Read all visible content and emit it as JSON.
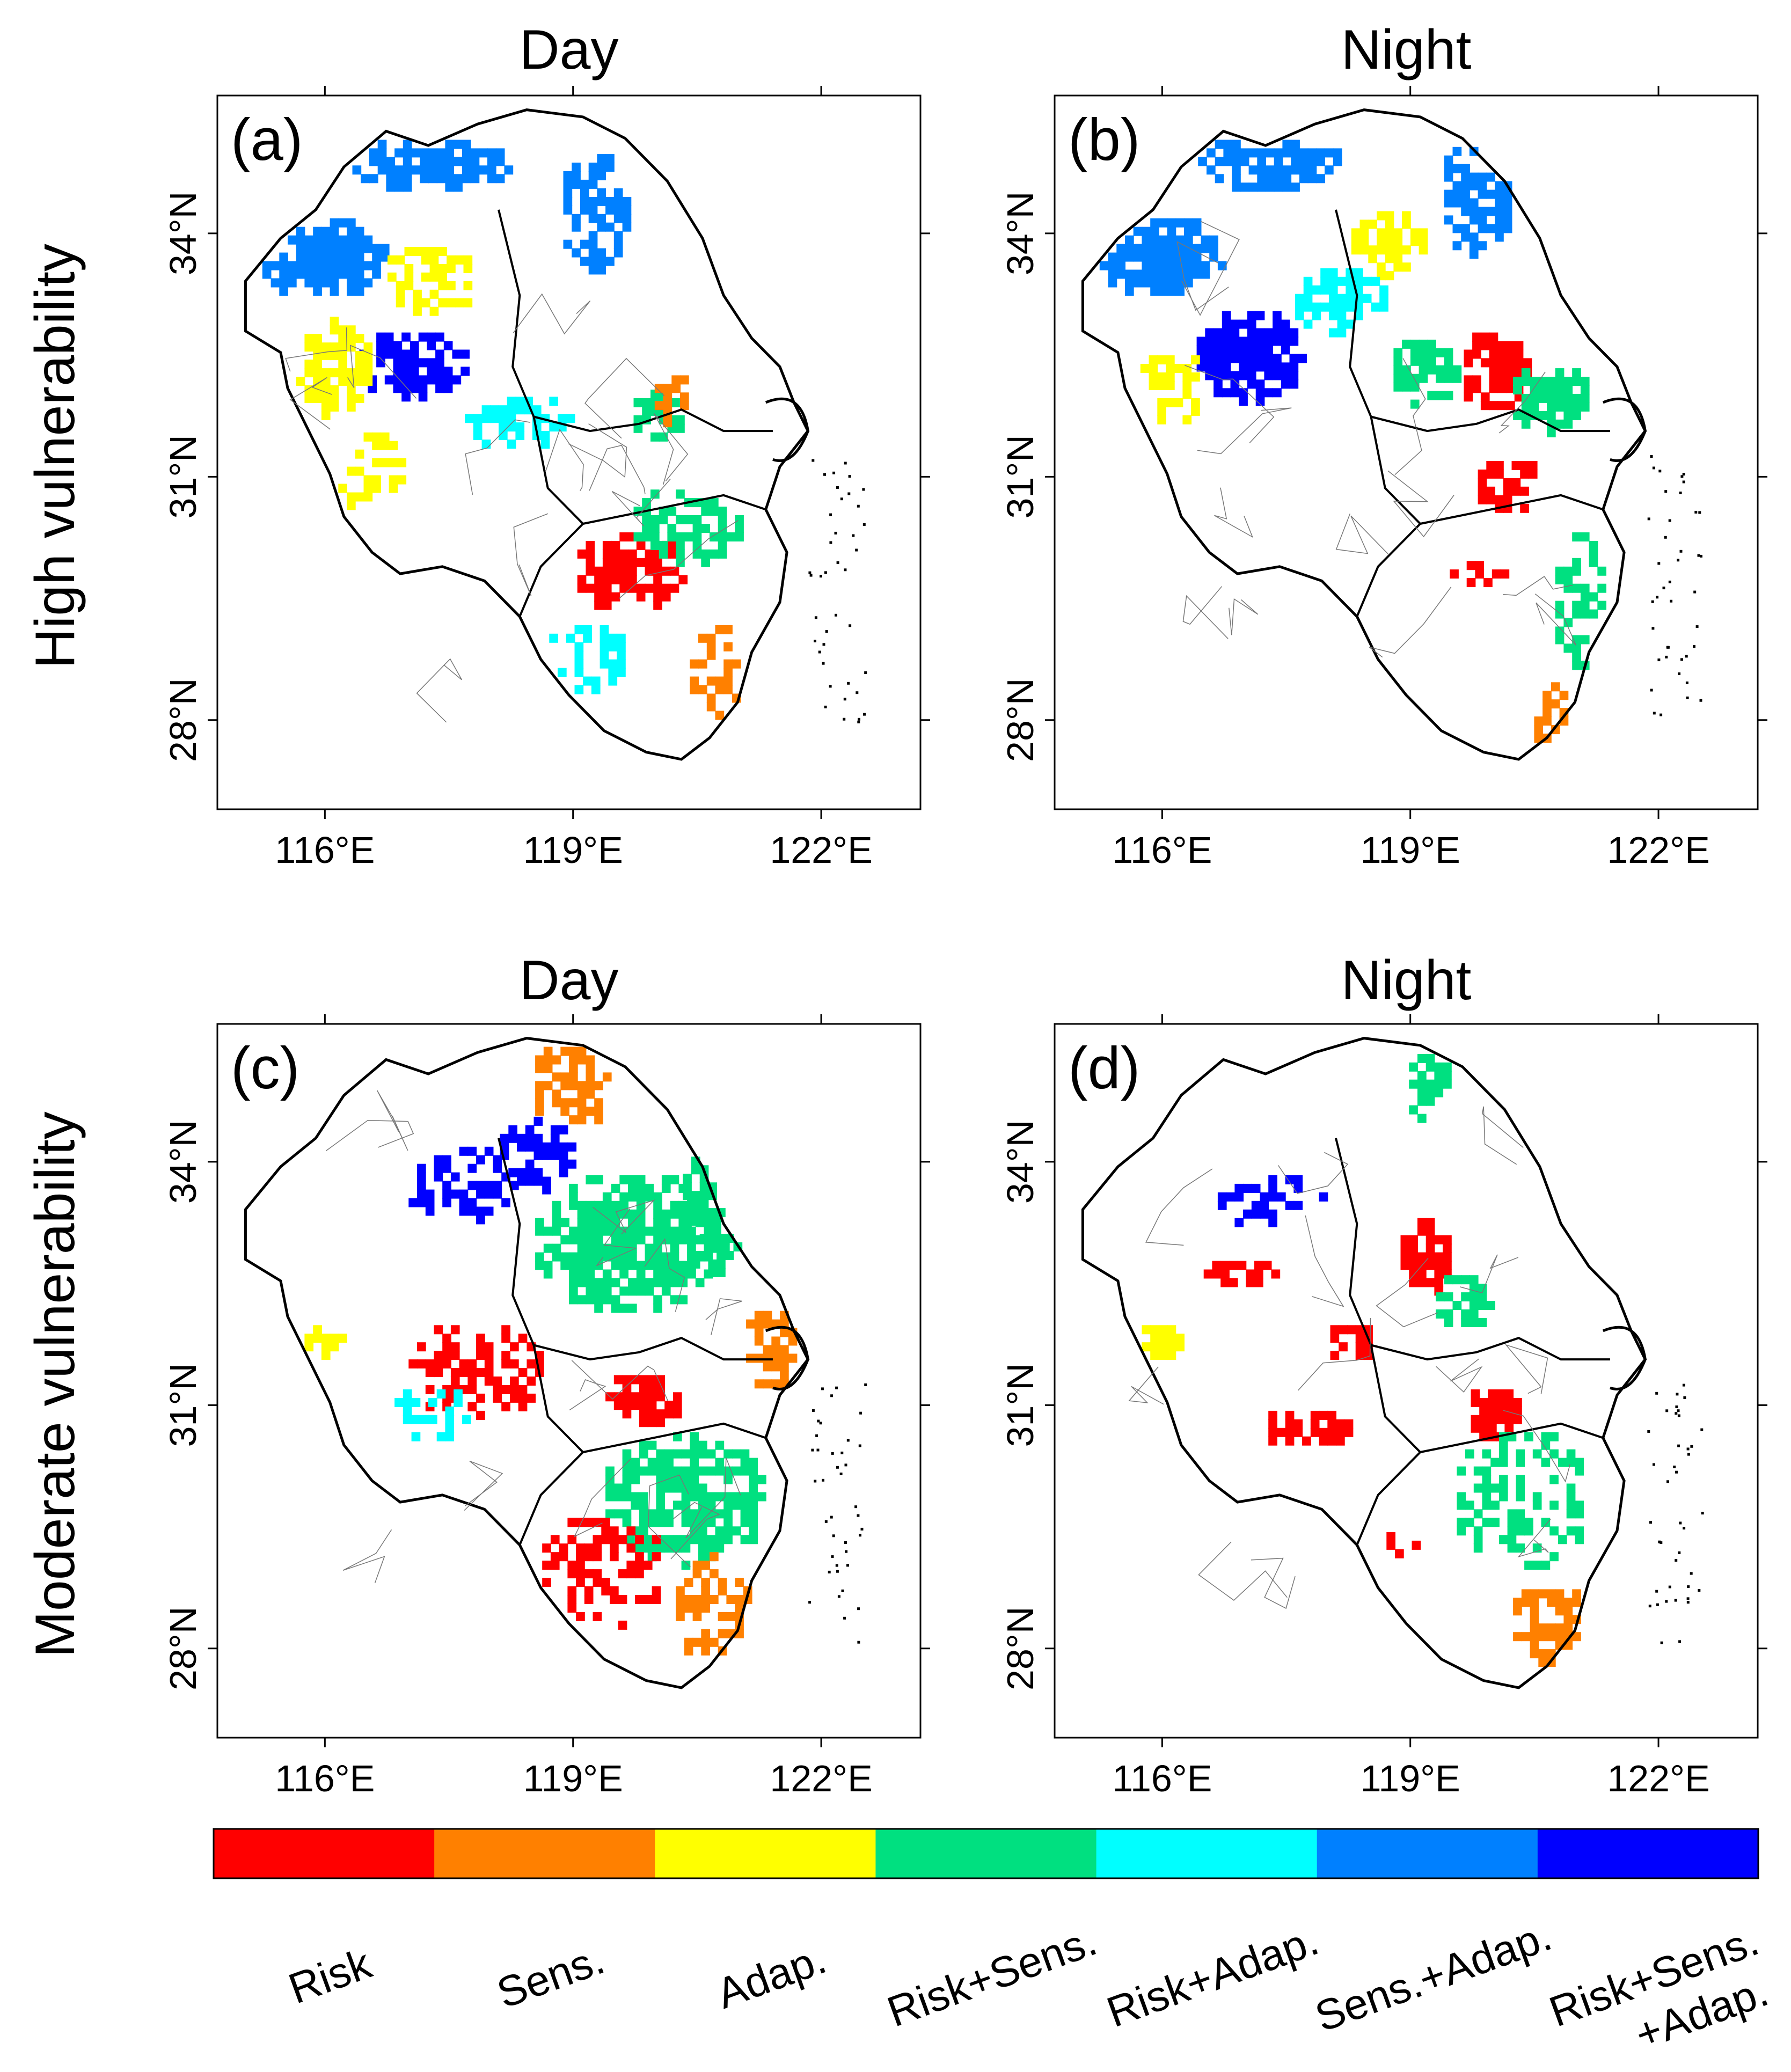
{
  "figure": {
    "column_titles": [
      "Day",
      "Night"
    ],
    "row_labels": [
      "High vulnerability",
      "Moderate vulnerability"
    ]
  },
  "panels": [
    {
      "id": "a",
      "label": "(a)",
      "row": "High vulnerability",
      "column": "Day"
    },
    {
      "id": "b",
      "label": "(b)",
      "row": "High vulnerability",
      "column": "Night"
    },
    {
      "id": "c",
      "label": "(c)",
      "row": "Moderate vulnerability",
      "column": "Day"
    },
    {
      "id": "d",
      "label": "(d)",
      "row": "Moderate vulnerability",
      "column": "Night"
    }
  ],
  "axes": {
    "x_ticks": [
      "116°E",
      "119°E",
      "122°E"
    ],
    "y_ticks": [
      "34°N",
      "31°N",
      "28°N"
    ],
    "lon_range": [
      114.7,
      123.2
    ],
    "lat_range": [
      26.9,
      35.7
    ]
  },
  "legend": {
    "categories": [
      {
        "label": "Risk",
        "color": "#ff0000"
      },
      {
        "label": "Sens.",
        "color": "#ff8000"
      },
      {
        "label": "Adap.",
        "color": "#ffff00"
      },
      {
        "label": "Risk+Sens.",
        "color": "#00e080"
      },
      {
        "label": "Risk+Adap.",
        "color": "#00ffff"
      },
      {
        "label": "Sens.+Adap.",
        "color": "#0080ff"
      },
      {
        "label": "Risk+Sens.\n+Adap.",
        "color": "#0000ff"
      }
    ]
  },
  "colors": {
    "risk": "#ff0000",
    "sens": "#ff8000",
    "adap": "#ffff00",
    "risk_sens": "#00e080",
    "risk_adap": "#00ffff",
    "sens_adap": "#0080ff",
    "risk_sens_adap": "#0000ff"
  }
}
